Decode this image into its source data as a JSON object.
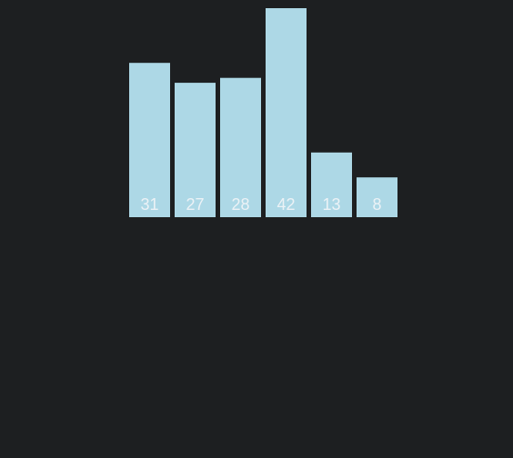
{
  "chart_data": {
    "type": "bar",
    "values": [
      31,
      27,
      28,
      42,
      13,
      8
    ],
    "show_value_labels": true,
    "value_label_position": "inside-bottom",
    "bar_color": "#add8e6",
    "label_color": "#ecf2f6",
    "background_color": "#1d1f21",
    "axes_visible": false,
    "grid": false,
    "legend": "none"
  }
}
